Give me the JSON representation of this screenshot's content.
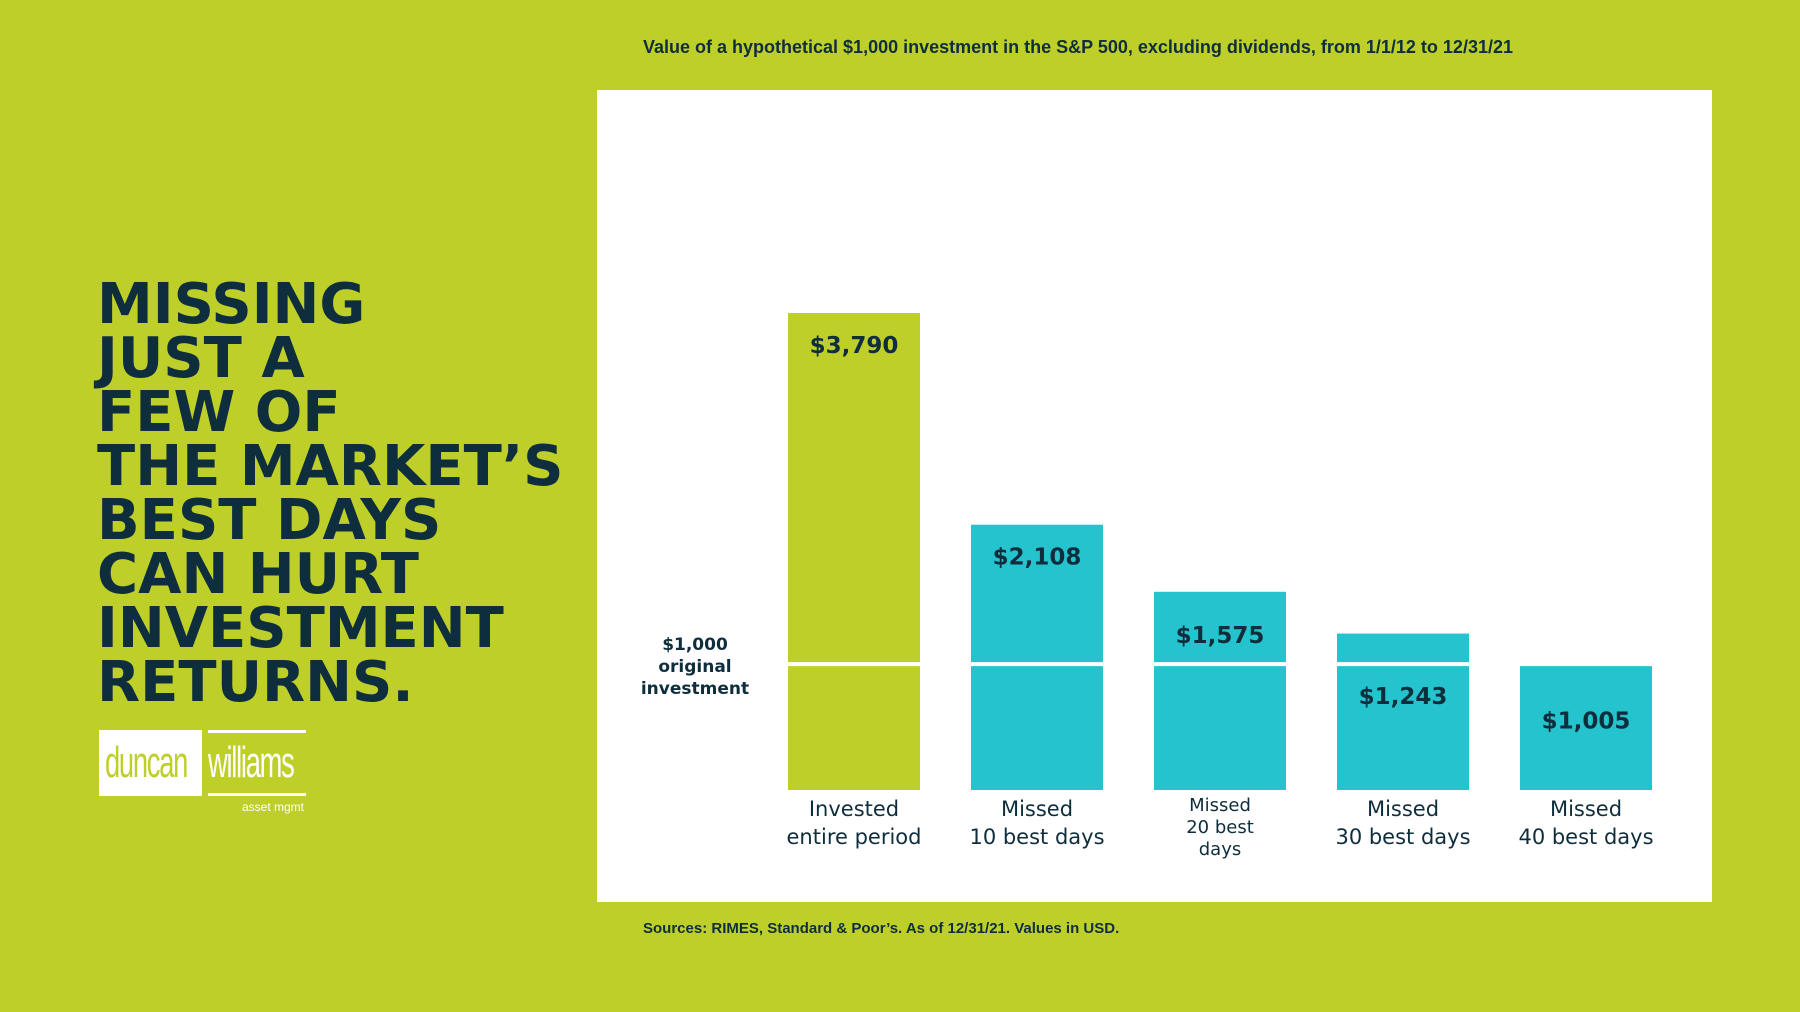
{
  "headline": [
    "MISSING",
    "JUST A",
    "FEW OF",
    "THE MARKET’S",
    "BEST DAYS",
    "CAN HURT",
    "INVESTMENT",
    "RETURNS."
  ],
  "logo": {
    "left_word": "duncan",
    "right_word": "williams",
    "sub": "asset mgmt"
  },
  "source": "Sources: RIMES, Standard & Poor’s. As of 12/31/21. Values in USD.",
  "colors": {
    "background": "#bfcf29",
    "bar_invested": "#bfcf29",
    "bar_missed": "#25c3cd",
    "text": "#0f2e3d"
  },
  "chart_data": {
    "type": "bar",
    "title": "Value of a hypothetical $1,000 investment in the S&P 500, excluding dividends, from 1/1/12 to 12/31/21",
    "categories": [
      [
        "Invested",
        "entire period"
      ],
      [
        "Missed",
        "10 best days"
      ],
      [
        "Missed",
        "20 best",
        "days"
      ],
      [
        "Missed",
        "30 best days"
      ],
      [
        "Missed",
        "40 best days"
      ]
    ],
    "values": [
      3790,
      2108,
      1575,
      1243,
      1005
    ],
    "value_labels": [
      "$3,790",
      "$2,108",
      "$1,575",
      "$1,243",
      "$1,005"
    ],
    "reference_line": {
      "value": 1000,
      "label": [
        "$1,000",
        "original",
        "investment"
      ]
    },
    "ylim": [
      0,
      3790
    ],
    "grid": false,
    "legend": "none"
  }
}
